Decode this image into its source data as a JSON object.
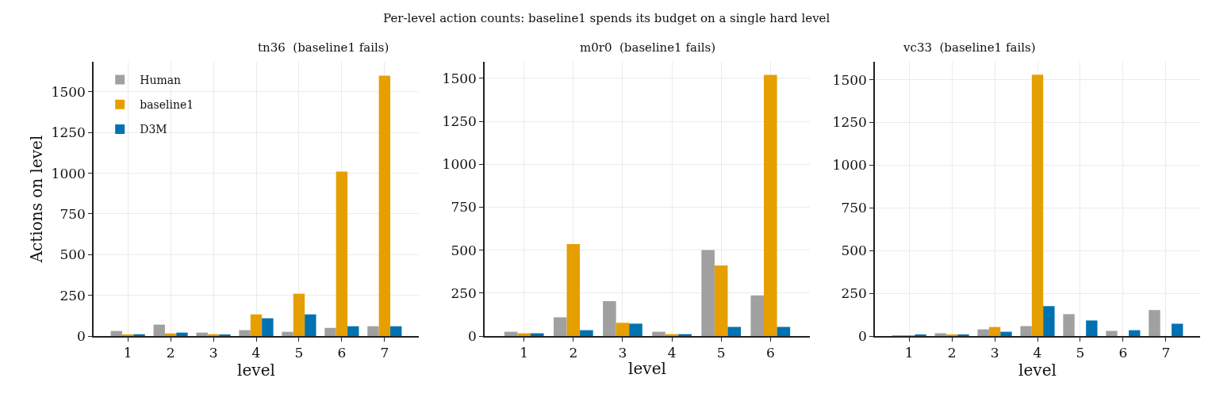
{
  "chart_data": [
    {
      "type": "bar",
      "title": "tn36  (baseline1 fails)",
      "annotations": [
        "Per-level action counts: baseline1 spends its budget on a single hard level"
      ],
      "xlabel": "level",
      "ylabel": "Actions on level",
      "categories": [
        "1",
        "2",
        "3",
        "4",
        "5",
        "6",
        "7"
      ],
      "ylim": [
        0,
        1685
      ],
      "yticks": [
        0,
        250,
        500,
        750,
        1000,
        1250,
        1500
      ],
      "grid": true,
      "legend": "top left",
      "series": [
        {
          "name": "Human",
          "color": "#a0a0a0",
          "values": [
            31,
            70,
            21,
            36,
            26,
            50,
            60
          ]
        },
        {
          "name": "baseline1",
          "color": "#e69f00",
          "values": [
            6,
            16,
            11,
            133,
            260,
            1010,
            1600
          ]
        },
        {
          "name": "D3M",
          "color": "#0072b2",
          "values": [
            11,
            21,
            6,
            109,
            133,
            60,
            60
          ]
        }
      ]
    },
    {
      "type": "bar",
      "title": "m0r0  (baseline1 fails)",
      "xlabel": "level",
      "categories": [
        "1",
        "2",
        "3",
        "4",
        "5",
        "6"
      ],
      "ylim": [
        0,
        1596
      ],
      "yticks": [
        0,
        250,
        500,
        750,
        1000,
        1250,
        1500
      ],
      "grid": true,
      "series": [
        {
          "color": "#a0a0a0",
          "values": [
            25,
            109,
            203,
            25,
            500,
            236
          ]
        },
        {
          "color": "#e69f00",
          "values": [
            16,
            535,
            77,
            11,
            410,
            1520
          ]
        },
        {
          "color": "#0072b2",
          "values": [
            16,
            34,
            72,
            11,
            53,
            53
          ]
        }
      ]
    },
    {
      "type": "bar",
      "title": "vc33  (baseline1 fails)",
      "xlabel": "level",
      "categories": [
        "1",
        "2",
        "3",
        "4",
        "5",
        "6",
        "7"
      ],
      "ylim": [
        0,
        1605
      ],
      "yticks": [
        0,
        250,
        500,
        750,
        1000,
        1250,
        1500
      ],
      "grid": true,
      "series": [
        {
          "color": "#a0a0a0",
          "values": [
            1,
            16,
            39,
            58,
            128,
            30,
            152
          ]
        },
        {
          "color": "#e69f00",
          "values": [
            1,
            6,
            53,
            1530,
            0,
            0,
            0
          ]
        },
        {
          "color": "#0072b2",
          "values": [
            6,
            6,
            25,
            175,
            91,
            34,
            72
          ]
        }
      ]
    }
  ]
}
